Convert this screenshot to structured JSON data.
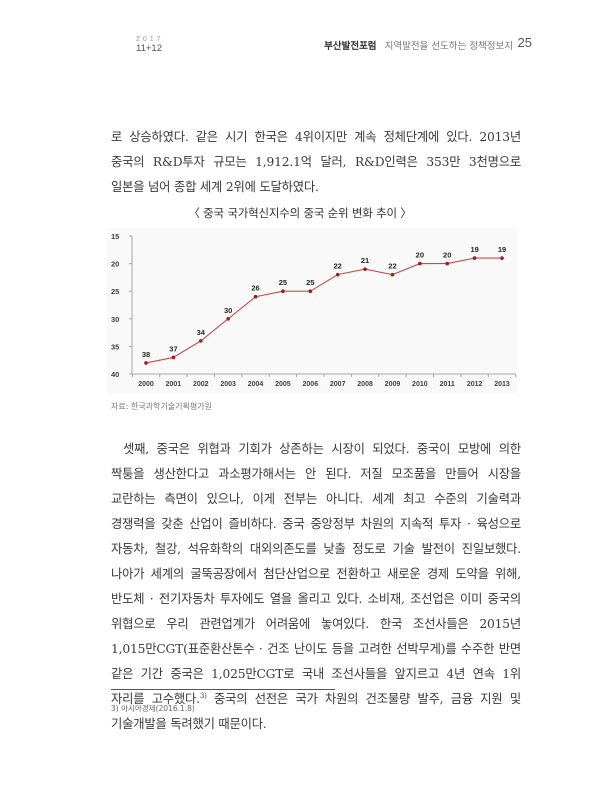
{
  "header": {
    "issue_year": "2017",
    "issue_months": "11+12",
    "magazine_name": "부산발전포럼",
    "magazine_tagline": "지역발전을 선도하는 정책정보지",
    "page_number": "25"
  },
  "body": {
    "paragraph_1": "로 상승하였다. 같은 시기 한국은 4위이지만 계속 정체단계에 있다. 2013년 중국의 R&D투자 규모는 1,912.1억 달러, R&D인력은 353만 3천명으로 일본을 넘어 종합 세계 2위에 도달하였다.",
    "paragraph_2_before_note": "셋째, 중국은 위협과 기회가 상존하는 시장이 되었다. 중국이 모방에 의한 짝퉁을 생산한다고 과소평가해서는 안 된다. 저질 모조품을 만들어 시장을 교란하는 측면이 있으나, 이게 전부는 아니다. 세계 최고 수준의 기술력과 경쟁력을 갖춘 산업이 즐비하다. 중국 중앙정부 차원의 지속적 투자 · 육성으로 자동차, 철강, 석유화학의 대외의존도를 낮출 정도로 기술 발전이 진일보했다. 나아가 세계의 굴뚝공장에서 첨단산업으로 전환하고 새로운 경제 도약을 위해, 반도체 · 전기자동차 투자에도 열을 올리고 있다. 소비재, 조선업은 이미 중국의 위협으로 우리 관련업계가 어려움에 놓여있다. 한국 조선사들은 2015년 1,015만CGT(표준환산톤수 · 건조 난이도 등을 고려한 선박무게)를 수주한 반면 같은 기간 중국은 1,025만CGT로 국내 조선사들을 앞지르고 4년 연속 1위 자리를 고수했다.",
    "footnote_ref": "3)",
    "paragraph_2_after_note": " 중국의 선전은 국가 차원의 건조물량 발주, 금융 지원 및 기술개발을 독려했기 때문이다."
  },
  "figure": {
    "title": "〈 중국 국가혁신지수의 중국 순위 변화 추이 〉",
    "source": "자료: 한국과학기술기획평가원"
  },
  "chart_data": {
    "type": "line",
    "title": "중국 국가혁신지수의 중국 순위 변화 추이",
    "xlabel": "",
    "ylabel": "",
    "categories": [
      "2000",
      "2001",
      "2002",
      "2003",
      "2004",
      "2005",
      "2006",
      "2007",
      "2008",
      "2009",
      "2010",
      "2011",
      "2012",
      "2013"
    ],
    "series": [
      {
        "name": "중국 순위",
        "values": [
          38,
          37,
          34,
          30,
          26,
          25,
          25,
          22,
          21,
          22,
          20,
          20,
          19,
          19
        ],
        "color": "#c0504d"
      }
    ],
    "data_labels": true,
    "y_axis": {
      "reversed": true,
      "ylim": [
        15,
        40
      ],
      "ticks": [
        "15",
        "20",
        "25",
        "30",
        "35",
        "40"
      ]
    },
    "grid": false,
    "legend": "none",
    "background": "#f9f9f9"
  },
  "footnotes": [
    {
      "marker": "3)",
      "text": "3) 아시아경제(2016.1.8)"
    }
  ]
}
